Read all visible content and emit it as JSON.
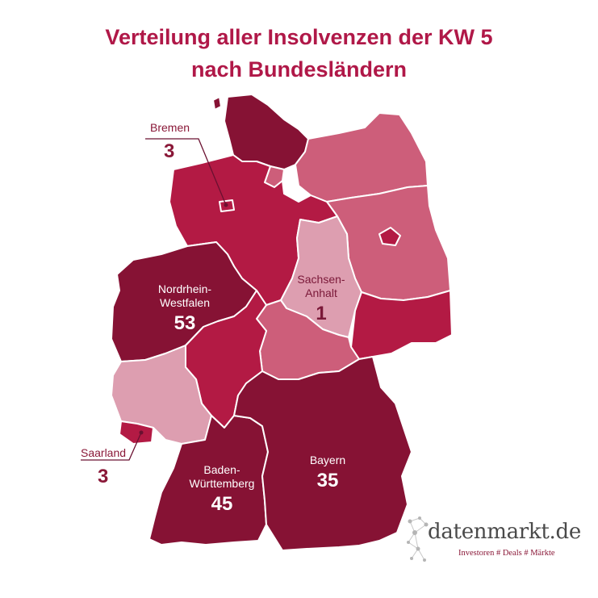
{
  "title": {
    "line1": "Verteilung aller Insolvenzen der KW 5",
    "line2": "nach Bundesländern"
  },
  "colors": {
    "darkest": "#861234",
    "dark": "#b31a44",
    "medium": "#cd5e7a",
    "light": "#dd9eb0",
    "accent": "#8a1838"
  },
  "regions": {
    "nordrhein_westfalen": {
      "name_line1": "Nordrhein-",
      "name_line2": "Westfalen",
      "value": "53"
    },
    "sachsen_anhalt": {
      "name_line1": "Sachsen-",
      "name_line2": "Anhalt",
      "value": "1"
    },
    "bayern": {
      "name": "Bayern",
      "value": "35"
    },
    "baden_wuerttemberg": {
      "name_line1": "Baden-",
      "name_line2": "Württemberg",
      "value": "45"
    },
    "bremen": {
      "name": "Bremen",
      "value": "3"
    },
    "saarland": {
      "name": "Saarland",
      "value": "3"
    }
  },
  "logo": {
    "name": "datenmarkt.de",
    "tagline": "Investoren # Deals # Märkte"
  }
}
